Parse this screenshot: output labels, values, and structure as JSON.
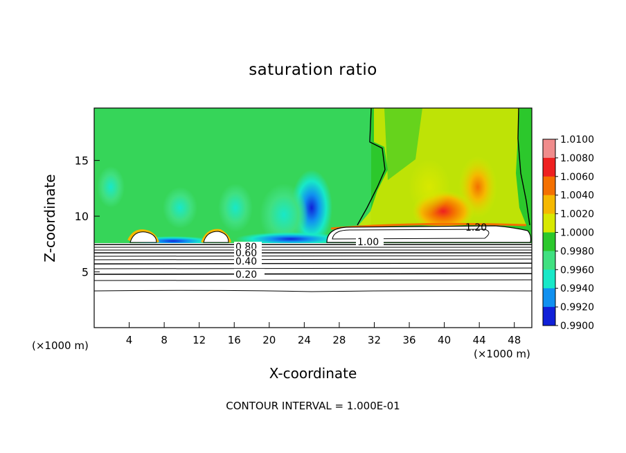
{
  "title": "saturation ratio",
  "chart_data": {
    "type": "heatmap",
    "title": "saturation ratio",
    "xlabel": "X-coordinate",
    "ylabel": "Z-coordinate",
    "x_unit": "(×1000 m)",
    "x_ticks": [
      "4",
      "8",
      "12",
      "16",
      "20",
      "24",
      "28",
      "32",
      "36",
      "40",
      "44",
      "48"
    ],
    "y_ticks": [
      "5",
      "10",
      "15"
    ],
    "xlim": [
      0,
      50
    ],
    "ylim": [
      0,
      19.7
    ],
    "colorbar": {
      "labels": [
        "1.0100",
        "1.0080",
        "1.0060",
        "1.0040",
        "1.0020",
        "1.0000",
        "0.9980",
        "0.9960",
        "0.9940",
        "0.9920",
        "0.9900"
      ],
      "colors": [
        "#f08c8c",
        "#ee2020",
        "#f47000",
        "#f5b800",
        "#d8e800",
        "#2cc82c",
        "#40e080",
        "#18e8c8",
        "#1090f0",
        "#1020d8",
        "#6a1aa0"
      ],
      "range": [
        0.99,
        1.01
      ]
    },
    "contour_labels": [
      "0.80",
      "0.60",
      "0.40",
      "0.20",
      "1.00",
      "1.20"
    ],
    "contour_interval_text": "CONTOUR INTERVAL = 1.000E-01"
  }
}
